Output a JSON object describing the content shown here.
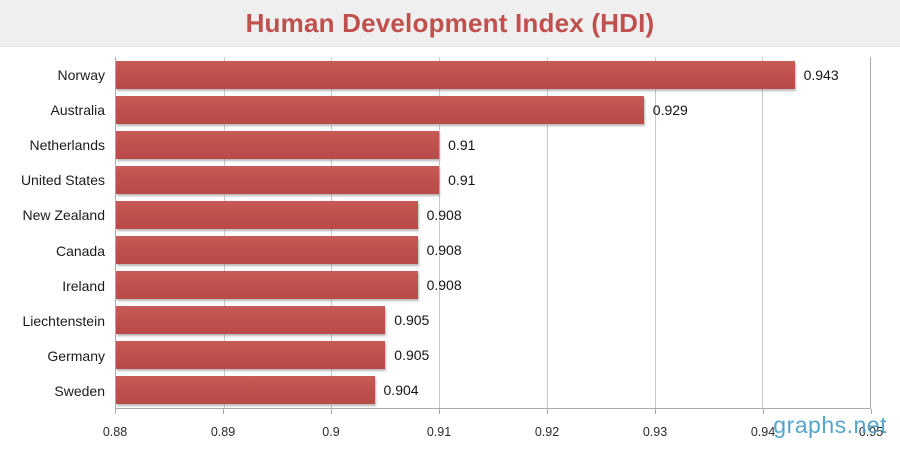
{
  "header": {
    "title": "Human Development Index (HDI)"
  },
  "watermark": "graphs.net",
  "colors": {
    "bar": "#c0504d",
    "title": "#c0504d",
    "header_bg": "#efeff0",
    "gridline": "#c9c9c9",
    "axis_border": "#ababab",
    "watermark": "#54a5cb"
  },
  "chart_data": {
    "type": "bar",
    "orientation": "horizontal",
    "title": "Human Development Index (HDI)",
    "categories": [
      "Norway",
      "Australia",
      "Netherlands",
      "United States",
      "New Zealand",
      "Canada",
      "Ireland",
      "Liechtenstein",
      "Germany",
      "Sweden"
    ],
    "values": [
      0.943,
      0.929,
      0.91,
      0.91,
      0.908,
      0.908,
      0.908,
      0.905,
      0.905,
      0.904
    ],
    "value_labels": [
      "0.943",
      "0.929",
      "0.91",
      "0.91",
      "0.908",
      "0.908",
      "0.908",
      "0.905",
      "0.905",
      "0.904"
    ],
    "xlim": [
      0.88,
      0.95
    ],
    "x_ticks": [
      0.88,
      0.89,
      0.9,
      0.91,
      0.92,
      0.93,
      0.94,
      0.95
    ],
    "x_tick_labels": [
      "0.88",
      "0.89",
      "0.9",
      "0.91",
      "0.92",
      "0.93",
      "0.94",
      "0.95"
    ],
    "xlabel": "",
    "ylabel": "",
    "grid": true,
    "legend": false
  }
}
